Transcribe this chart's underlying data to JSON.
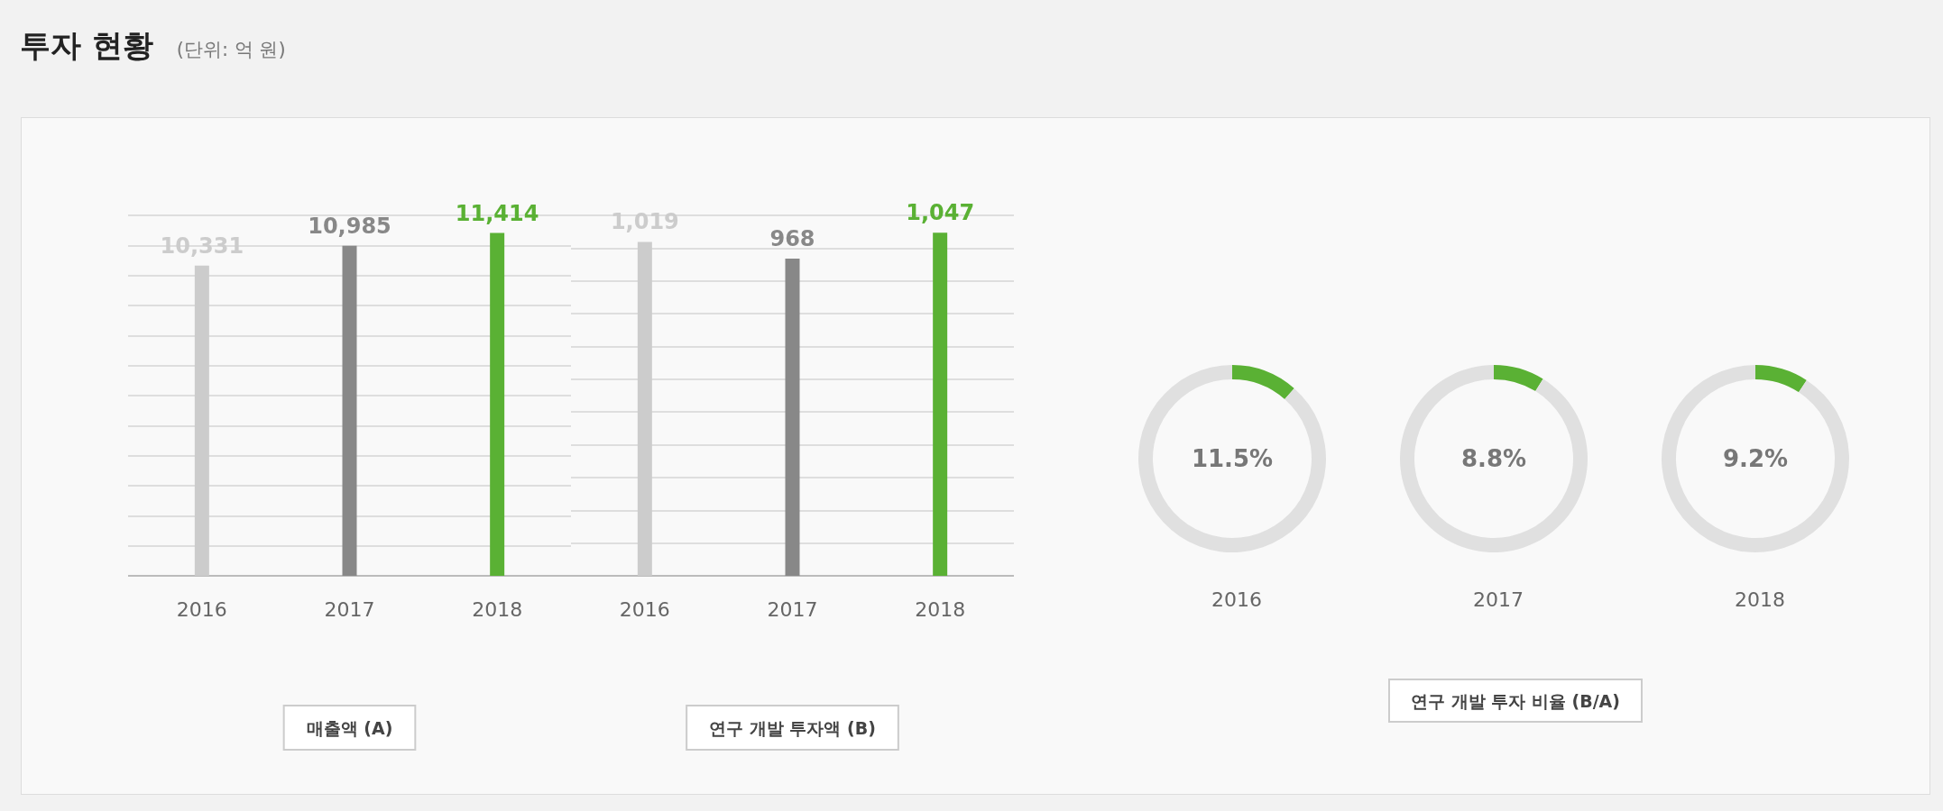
{
  "chart_data": [
    {
      "type": "bar",
      "title": "투자 현황",
      "subtitle": "(단위: 억 원)",
      "xlabel": "매출액 (A)",
      "categories": [
        "2016",
        "2017",
        "2018"
      ],
      "values": [
        10331,
        10985,
        11414
      ],
      "value_labels": [
        "10,331",
        "10,985",
        "11,414"
      ],
      "colors": [
        "#cccccc",
        "#888888",
        "#5ab134"
      ],
      "grid": "y",
      "tick_labels": "x"
    },
    {
      "type": "bar",
      "xlabel": "연구 개발 투자액 (B)",
      "categories": [
        "2016",
        "2017",
        "2018"
      ],
      "values": [
        1019,
        968,
        1047
      ],
      "value_labels": [
        "1,019",
        "968",
        "1,047"
      ],
      "colors": [
        "#cccccc",
        "#888888",
        "#5ab134"
      ],
      "grid": "y",
      "tick_labels": "x"
    },
    {
      "type": "donut",
      "xlabel": "연구 개발 투자 비율 (B/A)",
      "categories": [
        null,
        null
      ],
      "series": [
        {
          "name": "2016",
          "values": [
            11.5,
            88.5
          ],
          "colors": [
            "#5ab134",
            "#e0e0e0"
          ],
          "value_labels": [
            "11.5%",
            null
          ]
        },
        {
          "name": "2017",
          "values": [
            8.8,
            91.2
          ],
          "colors": [
            "#5ab134",
            "#e0e0e0"
          ],
          "value_labels": [
            "8.8%",
            null
          ]
        },
        {
          "name": "2018",
          "values": [
            9.2,
            90.8
          ],
          "colors": [
            "#5ab134",
            "#e0e0e0"
          ],
          "value_labels": [
            "9.2%",
            null
          ]
        }
      ]
    }
  ]
}
